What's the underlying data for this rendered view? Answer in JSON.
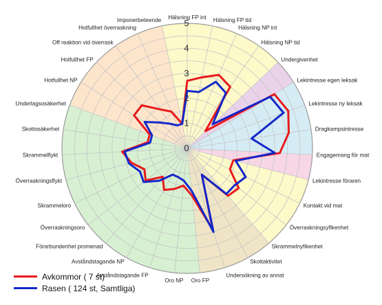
{
  "chart_data": {
    "type": "radar",
    "rmax": 5,
    "ticks": [
      "0",
      "1",
      "2",
      "3",
      "4",
      "5"
    ],
    "axes": [
      "Hälsning FP int",
      "Hälsning FP tid",
      "Hälsning NP int",
      "Hälsning NP tid",
      "Undergivenhet",
      "Lekintresse egen leksak",
      "Lekintresse ny leksak",
      "Dragkampsintresse",
      "Engagemang för mat",
      "Lekintresse föraren",
      "Kontakt vid mat",
      "Överraskningsyfikenhet",
      "Skrammelnyfikenhet",
      "Skottaktivitet",
      "Undersökning av annat",
      "Oro FP",
      "Oro NP",
      "Avståndstagande FP",
      "Avståndstagande NP",
      "Förarbundenhet promenad",
      "Överraskningsoro",
      "Skrammeloro",
      "Överraskningsflykt",
      "Skrammelflykt",
      "Skottosäkerhet",
      "Underlagsosäkerhet",
      "Hotfullhet NP",
      "Hotfullhet FP",
      "Off reaktion vid överrask",
      "Hotfullhet överraskning",
      "Imponerbeteende"
    ],
    "sectors": [
      {
        "from": 0,
        "to": 4,
        "color": "#fdf9c9"
      },
      {
        "from": 4,
        "to": 5,
        "color": "#ead3ea"
      },
      {
        "from": 5,
        "to": 8,
        "color": "#d5ecf5"
      },
      {
        "from": 8,
        "to": 9,
        "color": "#f7d6e6"
      },
      {
        "from": 9,
        "to": 12,
        "color": "#fdf9c9"
      },
      {
        "from": 12,
        "to": 15,
        "color": "#efe5c6"
      },
      {
        "from": 15,
        "to": 25,
        "color": "#d7f0d2"
      },
      {
        "from": 25,
        "to": 30,
        "color": "#fde5cc"
      },
      {
        "from": 30,
        "to": 31,
        "color": "#fdf9c9"
      }
    ],
    "series": [
      {
        "name": "Avkommor ( 7 st)",
        "color": "#e8191b",
        "values": [
          2.7,
          2.9,
          3.2,
          3.0,
          1.0,
          4.1,
          4.3,
          4.1,
          3.7,
          1.9,
          1.9,
          2.6,
          2.5,
          1.2,
          3.4,
          1.9,
          1.5,
          1.7,
          1.9,
          1.5,
          2.1,
          1.9,
          2.3,
          2.6,
          1.6,
          1.6,
          2.5,
          2.5,
          1.9,
          1.6,
          1.0
        ]
      },
      {
        "name": "Rasen ( 124 st, Samtliga)",
        "color": "#1428c8",
        "values": [
          2.3,
          2.3,
          2.9,
          2.7,
          1.4,
          3.9,
          4.1,
          2.6,
          3.5,
          2.0,
          2.6,
          2.4,
          2.4,
          1.2,
          3.5,
          1.7,
          1.3,
          1.2,
          1.2,
          1.7,
          2.2,
          2.1,
          2.4,
          2.5,
          1.5,
          1.5,
          2.0,
          1.5,
          1.2,
          1.0,
          1.0
        ]
      }
    ]
  }
}
